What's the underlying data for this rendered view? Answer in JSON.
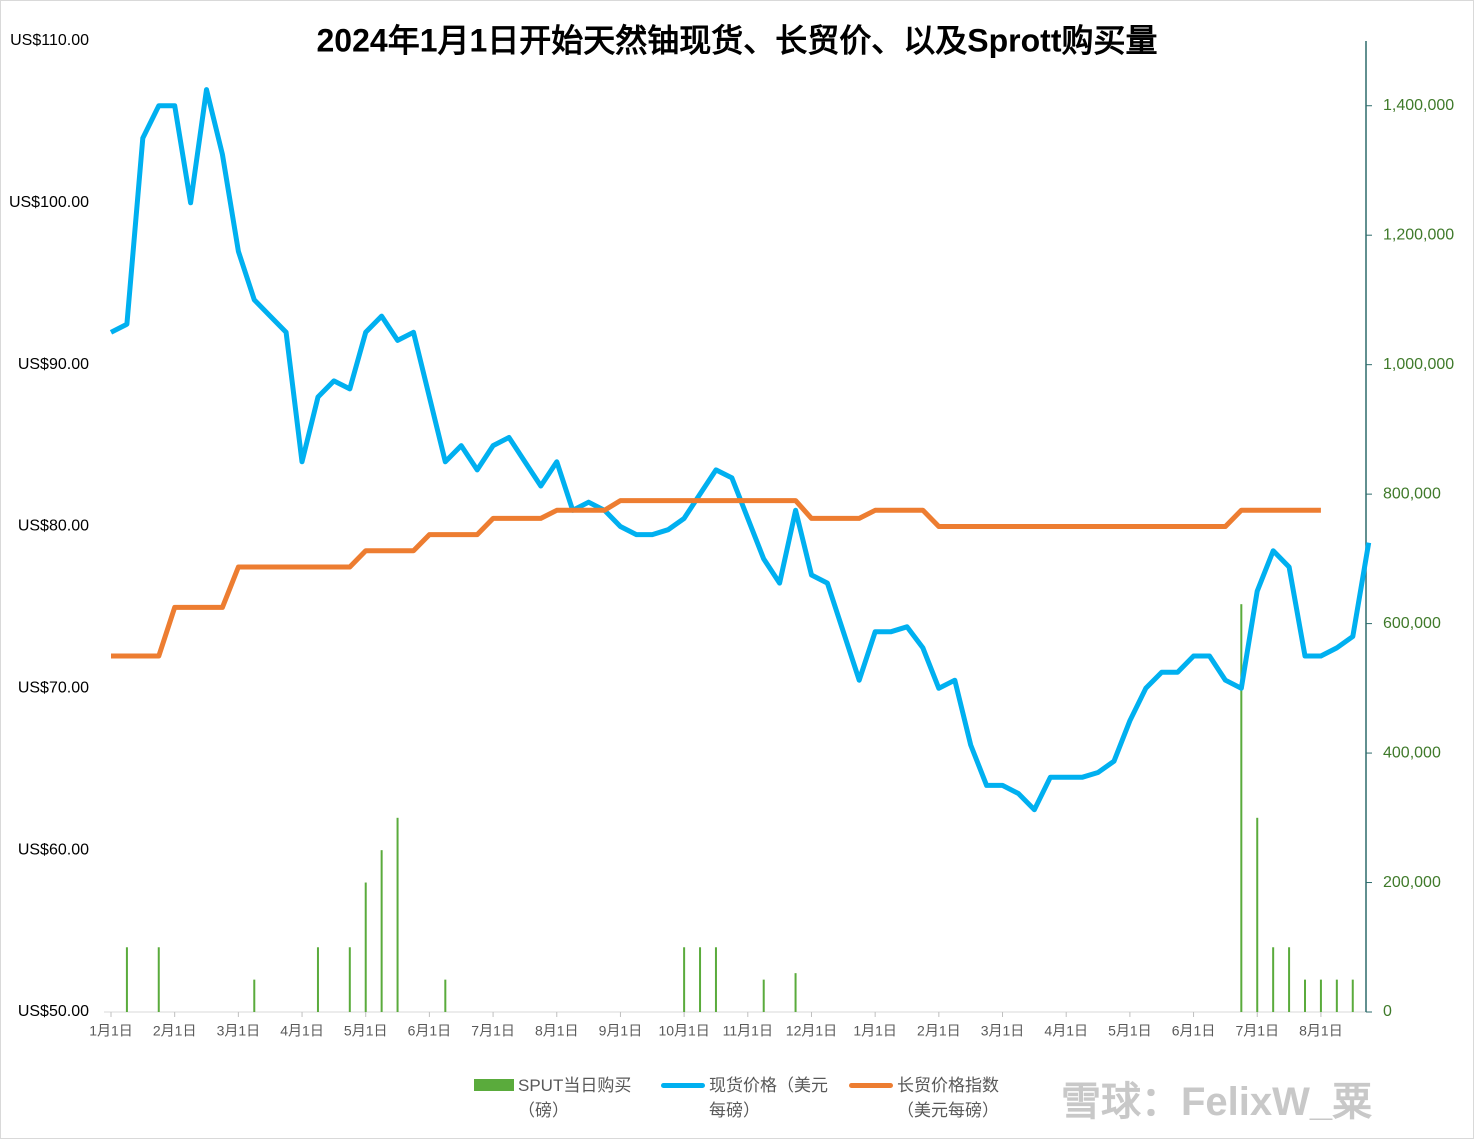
{
  "chart_data": {
    "type": "combo",
    "title": "2024年1月1日开始天然铀现货、长贸价、以及Sprott购买量",
    "watermark": "雪球：FelixW_粟",
    "categories": [
      "1月1日",
      null,
      null,
      null,
      "2月1日",
      null,
      null,
      null,
      "3月1日",
      null,
      null,
      null,
      "4月1日",
      null,
      null,
      null,
      "5月1日",
      null,
      null,
      null,
      "6月1日",
      null,
      null,
      null,
      "7月1日",
      null,
      null,
      null,
      "8月1日",
      null,
      null,
      null,
      "9月1日",
      null,
      null,
      null,
      "10月1日",
      null,
      null,
      null,
      "11月1日",
      null,
      null,
      null,
      "12月1日",
      null,
      null,
      null,
      "1月1日",
      null,
      null,
      null,
      "2月1日",
      null,
      null,
      null,
      "3月1日",
      null,
      null,
      null,
      "4月1日",
      null,
      null,
      null,
      "5月1日",
      null,
      null,
      null,
      "6月1日",
      null,
      null,
      null,
      "7月1日",
      null,
      null,
      null,
      "8月1日",
      null,
      null,
      null
    ],
    "series": [
      {
        "name": "SPUT当日购买（磅）",
        "type": "bar",
        "axis": "y2",
        "color": "#5aab3c",
        "values": [
          0,
          100000,
          0,
          100000,
          0,
          0,
          0,
          0,
          0,
          50000,
          0,
          0,
          0,
          100000,
          0,
          100000,
          200000,
          250000,
          300000,
          0,
          0,
          50000,
          0,
          0,
          0,
          0,
          0,
          0,
          0,
          0,
          0,
          0,
          0,
          0,
          0,
          0,
          100000,
          100000,
          100000,
          0,
          0,
          50000,
          0,
          60000,
          0,
          0,
          0,
          0,
          0,
          0,
          0,
          0,
          0,
          0,
          0,
          0,
          0,
          0,
          0,
          0,
          0,
          0,
          0,
          0,
          0,
          0,
          0,
          0,
          0,
          0,
          0,
          630000,
          300000,
          100000,
          100000,
          50000,
          50000,
          50000,
          50000,
          0
        ]
      },
      {
        "name": "现货价格（美元每磅）",
        "type": "line",
        "color": "#00b0f0",
        "values": [
          92,
          92.5,
          104,
          106,
          106,
          100,
          107,
          103,
          97,
          94,
          93,
          92,
          84,
          88,
          89,
          88.5,
          92,
          93,
          91.5,
          92,
          88,
          84,
          85,
          83.5,
          85,
          85.5,
          84,
          82.5,
          84,
          81,
          81.5,
          81,
          80,
          79.5,
          79.5,
          79.8,
          80.5,
          82,
          83.5,
          83,
          80.5,
          78,
          76.5,
          81,
          77,
          76.5,
          73.5,
          70.5,
          73.5,
          73.5,
          73.8,
          72.5,
          70,
          70.5,
          66.5,
          64,
          64,
          63.5,
          62.5,
          64.5,
          64.5,
          64.5,
          64.8,
          65.5,
          68,
          70,
          71,
          71,
          72,
          72,
          70.5,
          70,
          76,
          78.5,
          77.5,
          72,
          72,
          72.5,
          73.2,
          79
        ]
      },
      {
        "name": "长贸价格指数（美元每磅）",
        "type": "line",
        "color": "#ed7d31",
        "values": [
          72,
          72,
          72,
          72,
          75,
          75,
          75,
          75,
          77.5,
          77.5,
          77.5,
          77.5,
          77.5,
          77.5,
          77.5,
          77.5,
          78.5,
          78.5,
          78.5,
          78.5,
          79.5,
          79.5,
          79.5,
          79.5,
          80.5,
          80.5,
          80.5,
          80.5,
          81,
          81,
          81,
          81,
          81.6,
          81.6,
          81.6,
          81.6,
          81.6,
          81.6,
          81.6,
          81.6,
          81.6,
          81.6,
          81.6,
          81.6,
          80.5,
          80.5,
          80.5,
          80.5,
          81,
          81,
          81,
          81,
          80,
          80,
          80,
          80,
          80,
          80,
          80,
          80,
          80,
          80,
          80,
          80,
          80,
          80,
          80,
          80,
          80,
          80,
          80,
          81,
          81,
          81,
          81,
          81,
          81,
          null,
          null,
          null
        ]
      }
    ],
    "ylim": [
      50,
      110
    ],
    "yticks": [
      {
        "value": 50,
        "label": "US$50.00"
      },
      {
        "value": 60,
        "label": "US$60.00"
      },
      {
        "value": 70,
        "label": "US$70.00"
      },
      {
        "value": 80,
        "label": "US$80.00"
      },
      {
        "value": 90,
        "label": "US$90.00"
      },
      {
        "value": 100,
        "label": "US$100.00"
      },
      {
        "value": 110,
        "label": "US$110.00"
      }
    ],
    "y2lim": [
      0,
      1500000
    ],
    "y2ticks": [
      0,
      {
        "value": 200000,
        "label": "200,000"
      },
      {
        "value": 400000,
        "label": "400,000"
      },
      {
        "value": 600000,
        "label": "600,000"
      },
      {
        "value": 800000,
        "label": "800,000"
      },
      {
        "value": 1000000,
        "label": "1,000,000"
      },
      {
        "value": 1200000,
        "label": "1,200,000"
      },
      {
        "value": 1400000,
        "label": "1,400,000"
      }
    ],
    "legend": "bottom"
  }
}
